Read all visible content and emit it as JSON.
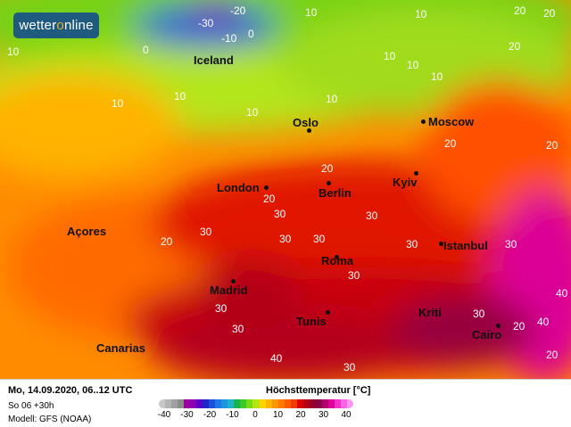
{
  "logo": {
    "text_a": "wetter",
    "text_o": "o",
    "text_b": "nline"
  },
  "cities": [
    {
      "name": "Iceland",
      "dot": false
    },
    {
      "name": "Oslo",
      "dot": true
    },
    {
      "name": "Moscow",
      "dot": true
    },
    {
      "name": "London",
      "dot": true
    },
    {
      "name": "Berlin",
      "dot": true
    },
    {
      "name": "Kyiv",
      "dot": true
    },
    {
      "name": "Açores",
      "dot": false
    },
    {
      "name": "Istanbul",
      "dot": true
    },
    {
      "name": "Roma",
      "dot": true
    },
    {
      "name": "Madrid",
      "dot": true
    },
    {
      "name": "Tunis",
      "dot": true
    },
    {
      "name": "Kriti",
      "dot": false
    },
    {
      "name": "Cairo",
      "dot": true
    },
    {
      "name": "Canarias",
      "dot": false
    }
  ],
  "temp_labels": [
    "-30",
    "-20",
    "-10",
    "0",
    "0",
    "10",
    "20",
    "10",
    "10",
    "10",
    "10",
    "10",
    "10",
    "10",
    "10",
    "20",
    "20",
    "20",
    "20",
    "20",
    "30",
    "30",
    "30",
    "30",
    "30",
    "30",
    "30",
    "30",
    "30",
    "30",
    "30",
    "40",
    "40",
    "40",
    "20",
    "20",
    "20",
    "20",
    "10",
    "30"
  ],
  "footer": {
    "date": "Mo, 14.09.2020, 06..12 UTC",
    "run": "So 06 +30h",
    "model": "Modell: GFS (NOAA)",
    "legend_title": "Höchsttemperatur [°C]",
    "legend_ticks": [
      "-40",
      "-30",
      "-20",
      "-10",
      "0",
      "10",
      "20",
      "30",
      "40"
    ],
    "legend_colors": [
      "#c8c8c8",
      "#b4b4b4",
      "#a0a0a0",
      "#8c8c8c",
      "#a0009e",
      "#8a00b4",
      "#5a00c8",
      "#1e28c8",
      "#1e50dc",
      "#1e78e6",
      "#1e96dc",
      "#1eb4c8",
      "#14b450",
      "#3cc828",
      "#78dc14",
      "#b4e614",
      "#ffd200",
      "#ffb400",
      "#ff9600",
      "#ff7800",
      "#ff5a00",
      "#f03c00",
      "#dc0000",
      "#b40014",
      "#96002d",
      "#8c0046",
      "#b4006e",
      "#dc0096",
      "#f032c8",
      "#fa64e6",
      "#ff96f0"
    ]
  }
}
